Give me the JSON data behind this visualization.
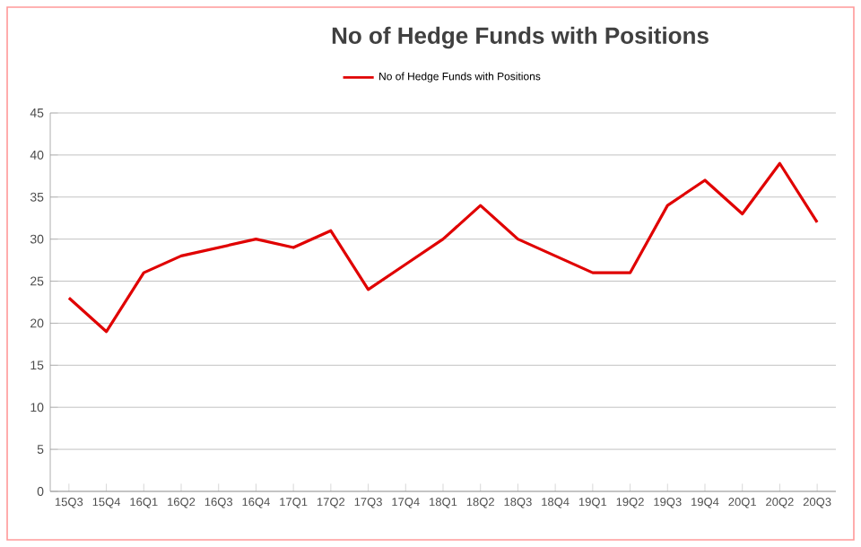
{
  "chart_data": {
    "type": "line",
    "title": "No of Hedge Funds with Positions",
    "categories": [
      "15Q3",
      "15Q4",
      "16Q1",
      "16Q2",
      "16Q3",
      "16Q4",
      "17Q1",
      "17Q2",
      "17Q3",
      "17Q4",
      "18Q1",
      "18Q2",
      "18Q3",
      "18Q4",
      "19Q1",
      "19Q2",
      "19Q3",
      "19Q4",
      "20Q1",
      "20Q2",
      "20Q3"
    ],
    "series": [
      {
        "name": "No of Hedge Funds with Positions",
        "color": "#e00000",
        "values": [
          23,
          19,
          26,
          28,
          29,
          30,
          29,
          31,
          24,
          27,
          30,
          34,
          30,
          28,
          26,
          26,
          34,
          37,
          33,
          39,
          32
        ]
      }
    ],
    "ylim": [
      0,
      45
    ],
    "yticks": [
      0,
      5,
      10,
      15,
      20,
      25,
      30,
      35,
      40,
      45
    ],
    "grid": "y",
    "legend": "top",
    "marker": "none",
    "line_style": "solid"
  }
}
